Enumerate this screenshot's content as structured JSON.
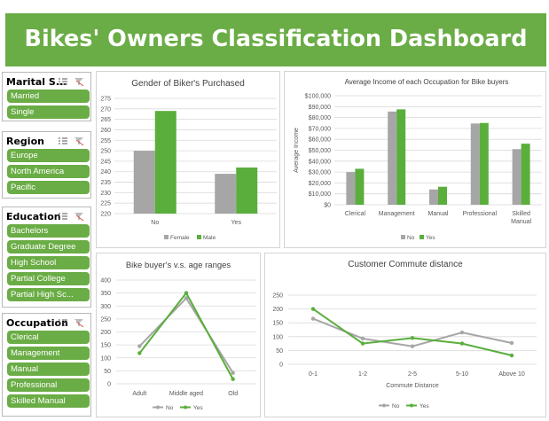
{
  "dashboard": {
    "title": "Bikes' Owners Classification Dashboard"
  },
  "colors": {
    "accent": "#6aac45",
    "male_yes": "#5aae3c",
    "female_no": "#a6a6a6"
  },
  "slicers": [
    {
      "title": "Marital S...",
      "items": [
        "Married",
        "Single"
      ]
    },
    {
      "title": "Region",
      "items": [
        "Europe",
        "North America",
        "Pacific"
      ]
    },
    {
      "title": "Education",
      "items": [
        "Bachelors",
        "Graduate Degree",
        "High School",
        "Partial College",
        "Partial High Sc..."
      ]
    },
    {
      "title": "Occupation",
      "items": [
        "Clerical",
        "Management",
        "Manual",
        "Professional",
        "Skilled Manual"
      ]
    }
  ],
  "chart_data": [
    {
      "type": "bar",
      "title": "Gender of Biker's Purchased",
      "categories": [
        "No",
        "Yes"
      ],
      "series": [
        {
          "name": "Female",
          "values": [
            250,
            239
          ]
        },
        {
          "name": "Male",
          "values": [
            269,
            242
          ]
        }
      ],
      "ylim": [
        220,
        275
      ],
      "yticks": [
        220,
        225,
        230,
        235,
        240,
        245,
        250,
        255,
        260,
        265,
        270,
        275
      ],
      "legend": "bottom",
      "grid": true
    },
    {
      "type": "bar",
      "title": "Average Income of each Occupation for Bike buyers",
      "ylabel": "Average Income",
      "categories": [
        "Clerical",
        "Management",
        "Manual",
        "Professional",
        "Skilled Manual"
      ],
      "series": [
        {
          "name": "No",
          "values": [
            30000,
            85500,
            14000,
            74500,
            51000
          ]
        },
        {
          "name": "Yes",
          "values": [
            33000,
            87500,
            16500,
            75000,
            56000
          ]
        }
      ],
      "ylim": [
        0,
        100000
      ],
      "yticks": [
        "$0",
        "$10,000",
        "$20,000",
        "$30,000",
        "$40,000",
        "$50,000",
        "$60,000",
        "$70,000",
        "$80,000",
        "$90,000",
        "$100,000"
      ],
      "legend": "bottom",
      "grid": true
    },
    {
      "type": "line",
      "title": "Bike buyer's v.s. age ranges",
      "categories": [
        "Adult",
        "Middle aged",
        "Old"
      ],
      "series": [
        {
          "name": "No",
          "values": [
            145,
            330,
            42
          ]
        },
        {
          "name": "Yes",
          "values": [
            118,
            350,
            18
          ]
        }
      ],
      "ylim": [
        0,
        400
      ],
      "yticks": [
        0,
        50,
        100,
        150,
        200,
        250,
        300,
        350,
        400
      ],
      "legend": "bottom",
      "grid": true
    },
    {
      "type": "line",
      "title": "Customer Commute distance",
      "xlabel": "Commute Distance",
      "categories": [
        "0-1",
        "1-2",
        "2-5",
        "5-10",
        "Above 10"
      ],
      "series": [
        {
          "name": "No",
          "values": [
            165,
            93,
            65,
            115,
            77
          ]
        },
        {
          "name": "Yes",
          "values": [
            200,
            75,
            95,
            75,
            32
          ]
        }
      ],
      "ylim": [
        0,
        250
      ],
      "yticks": [
        0,
        50,
        100,
        150,
        200,
        250
      ],
      "legend": "bottom",
      "grid": true
    }
  ]
}
